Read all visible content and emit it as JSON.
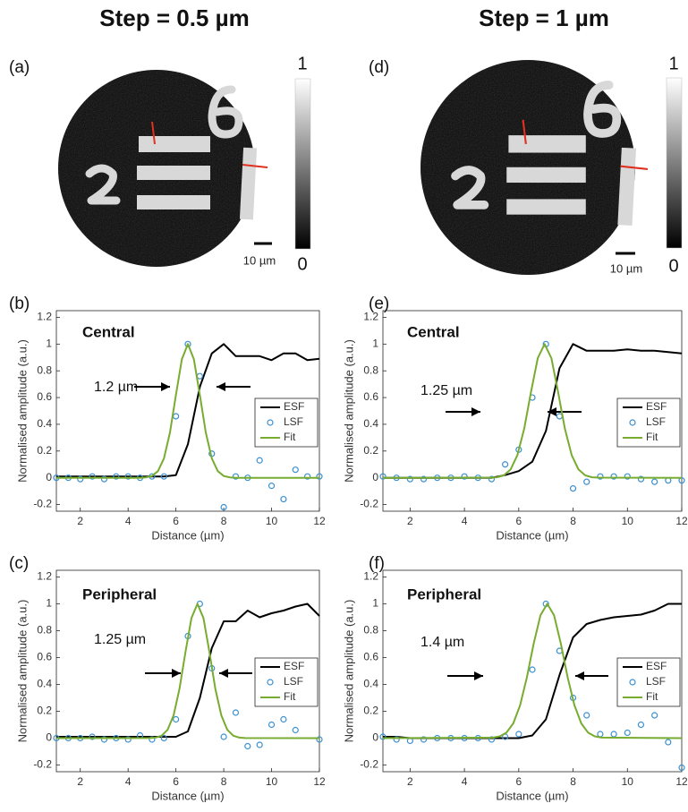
{
  "figure": {
    "columns": [
      {
        "heading": "Step = 0.5 µm",
        "image": {
          "panel_label": "(a)",
          "colorbar_max": "1",
          "colorbar_min": "0",
          "scale_bar": "10 µm"
        }
      },
      {
        "heading": "Step = 1 µm",
        "image": {
          "panel_label": "(d)",
          "colorbar_max": "1",
          "colorbar_min": "0",
          "scale_bar": "10 µm"
        }
      }
    ]
  },
  "chart_data": [
    {
      "type": "line",
      "panel_label": "(b)",
      "region": "Central",
      "fwhm_label": "1.2 µm",
      "x_label": "Distance (µm)",
      "y_label": "Normalised amplitude (a.u.)",
      "x": [
        1,
        1.5,
        2,
        2.5,
        3,
        3.5,
        4,
        4.5,
        5,
        5.5,
        6,
        6.5,
        7,
        7.5,
        8,
        8.5,
        9,
        9.5,
        10,
        10.5,
        11,
        11.5,
        12
      ],
      "series": [
        {
          "name": "ESF",
          "color": "#000000",
          "style": "line",
          "values": [
            0.01,
            0.01,
            0.01,
            0.01,
            0.01,
            0.01,
            0.01,
            0.01,
            0.01,
            0.01,
            0.02,
            0.25,
            0.68,
            0.93,
            1.0,
            0.91,
            0.91,
            0.91,
            0.88,
            0.93,
            0.93,
            0.88,
            0.89
          ]
        },
        {
          "name": "LSF",
          "color": "#3a8fd0",
          "style": "markers",
          "values": [
            0,
            0,
            -0.01,
            0.01,
            -0.01,
            0.01,
            0.01,
            0,
            0.01,
            0.01,
            0.46,
            1,
            0.76,
            0.18,
            -0.22,
            0.01,
            0,
            0.13,
            -0.06,
            -0.16,
            0.06,
            0.01,
            0.01
          ]
        },
        {
          "name": "Fit",
          "color": "#77ac30",
          "style": "line",
          "x": [
            1,
            4.5,
            4.75,
            5,
            5.25,
            5.5,
            5.75,
            6,
            6.25,
            6.5,
            6.75,
            7,
            7.25,
            7.5,
            7.75,
            8,
            8.25,
            8.5,
            12
          ],
          "values": [
            0,
            0,
            0.003,
            0.013,
            0.05,
            0.146,
            0.339,
            0.618,
            0.887,
            1,
            0.887,
            0.618,
            0.339,
            0.146,
            0.05,
            0.013,
            0.003,
            0,
            0
          ]
        }
      ],
      "xlim": [
        1,
        12
      ],
      "xticks": [
        2,
        4,
        6,
        8,
        10,
        12
      ],
      "ylim": [
        -0.25,
        1.25
      ],
      "yticks": [
        -0.2,
        0,
        0.2,
        0.4,
        0.6,
        0.8,
        1,
        1.2
      ],
      "legend": "right"
    },
    {
      "type": "line",
      "panel_label": "(c)",
      "region": "Peripheral",
      "fwhm_label": "1.25 µm",
      "x_label": "Distance (µm)",
      "y_label": "Normalised amplitude (a.u.)",
      "x": [
        1,
        1.5,
        2,
        2.5,
        3,
        3.5,
        4,
        4.5,
        5,
        5.5,
        6,
        6.5,
        7,
        7.5,
        8,
        8.5,
        9,
        9.5,
        10,
        10.5,
        11,
        11.5,
        12
      ],
      "series": [
        {
          "name": "ESF",
          "color": "#000000",
          "style": "line",
          "values": [
            0.01,
            0.01,
            0.01,
            0.01,
            0.01,
            0.01,
            0.01,
            0.01,
            0.01,
            0.01,
            0.01,
            0.05,
            0.3,
            0.67,
            0.87,
            0.87,
            0.95,
            0.9,
            0.93,
            0.95,
            0.98,
            1.0,
            0.91
          ]
        },
        {
          "name": "LSF",
          "color": "#3a8fd0",
          "style": "markers",
          "values": [
            0,
            0,
            0,
            0.01,
            -0.01,
            0,
            -0.01,
            0.02,
            -0.01,
            0,
            0.14,
            0.76,
            1,
            0.52,
            0.01,
            0.19,
            -0.06,
            -0.05,
            0.1,
            0.14,
            0.06,
            null,
            -0.01
          ]
        },
        {
          "name": "Fit",
          "color": "#77ac30",
          "style": "line",
          "x": [
            1,
            4.9,
            5.15,
            5.4,
            5.65,
            5.9,
            6.15,
            6.4,
            6.65,
            6.9,
            7.15,
            7.4,
            7.65,
            7.9,
            8.15,
            8.4,
            8.65,
            8.9,
            12
          ],
          "values": [
            0,
            0.001,
            0.004,
            0.018,
            0.062,
            0.169,
            0.367,
            0.641,
            0.895,
            1,
            0.895,
            0.641,
            0.367,
            0.169,
            0.062,
            0.018,
            0.004,
            0.001,
            0
          ]
        }
      ],
      "xlim": [
        1,
        12
      ],
      "xticks": [
        2,
        4,
        6,
        8,
        10,
        12
      ],
      "ylim": [
        -0.25,
        1.25
      ],
      "yticks": [
        -0.2,
        0,
        0.2,
        0.4,
        0.6,
        0.8,
        1,
        1.2
      ],
      "legend": "right"
    },
    {
      "type": "line",
      "panel_label": "(e)",
      "region": "Central",
      "fwhm_label": "1.25 µm",
      "x_label": "Distance (µm)",
      "y_label": "Normalised amplitude (a.u.)",
      "x": [
        1,
        1.5,
        2,
        2.5,
        3,
        3.5,
        4,
        4.5,
        5,
        5.5,
        6,
        6.5,
        7,
        7.5,
        8,
        8.5,
        9,
        9.5,
        10,
        10.5,
        11,
        11.5,
        12
      ],
      "series": [
        {
          "name": "ESF",
          "color": "#000000",
          "style": "line",
          "values": [
            0,
            0,
            0,
            0,
            0,
            0,
            0,
            0,
            0,
            0.02,
            0.05,
            0.12,
            0.35,
            0.82,
            1.0,
            0.95,
            0.95,
            0.95,
            0.96,
            0.95,
            0.95,
            0.94,
            0.93
          ]
        },
        {
          "name": "LSF",
          "color": "#3a8fd0",
          "style": "markers",
          "values": [
            0.01,
            0,
            -0.01,
            -0.01,
            0,
            0,
            0.01,
            0,
            -0.01,
            0.1,
            0.21,
            0.6,
            1,
            0.46,
            -0.08,
            -0.03,
            0.01,
            0.01,
            0.01,
            -0.01,
            -0.03,
            -0.02,
            -0.02
          ]
        },
        {
          "name": "Fit",
          "color": "#77ac30",
          "style": "line",
          "x": [
            1,
            4.95,
            5.2,
            5.45,
            5.7,
            5.95,
            6.2,
            6.45,
            6.7,
            6.95,
            7.2,
            7.45,
            7.7,
            7.95,
            8.2,
            8.45,
            8.7,
            8.95,
            12
          ],
          "values": [
            0,
            0.001,
            0.004,
            0.018,
            0.062,
            0.169,
            0.367,
            0.641,
            0.895,
            1,
            0.895,
            0.641,
            0.367,
            0.169,
            0.062,
            0.018,
            0.004,
            0.001,
            0
          ]
        }
      ],
      "xlim": [
        1,
        12
      ],
      "xticks": [
        2,
        4,
        6,
        8,
        10,
        12
      ],
      "ylim": [
        -0.25,
        1.25
      ],
      "yticks": [
        -0.2,
        0,
        0.2,
        0.4,
        0.6,
        0.8,
        1,
        1.2
      ],
      "legend": "right"
    },
    {
      "type": "line",
      "panel_label": "(f)",
      "region": "Peripheral",
      "fwhm_label": "1.4 µm",
      "x_label": "Distance (µm)",
      "y_label": "Normalised amplitude (a.u.)",
      "x": [
        1,
        1.5,
        2,
        2.5,
        3,
        3.5,
        4,
        4.5,
        5,
        5.5,
        6,
        6.5,
        7,
        7.5,
        8,
        8.5,
        9,
        9.5,
        10,
        10.5,
        11,
        11.5,
        12
      ],
      "series": [
        {
          "name": "ESF",
          "color": "#000000",
          "style": "line",
          "values": [
            0.01,
            0.01,
            0,
            0,
            0,
            0,
            0,
            0,
            0,
            0,
            0,
            0.02,
            0.14,
            0.47,
            0.75,
            0.85,
            0.88,
            0.9,
            0.91,
            0.92,
            0.95,
            1.0,
            1.0
          ]
        },
        {
          "name": "LSF",
          "color": "#3a8fd0",
          "style": "markers",
          "values": [
            0.01,
            -0.01,
            -0.02,
            -0.01,
            0,
            0,
            0,
            0,
            -0.01,
            0.01,
            0.03,
            0.51,
            1,
            0.65,
            0.3,
            0.17,
            0.03,
            0.03,
            0.04,
            0.1,
            0.17,
            -0.03,
            -0.22
          ]
        },
        {
          "name": "Fit",
          "color": "#77ac30",
          "style": "line",
          "x": [
            1,
            5.05,
            5.3,
            5.55,
            5.8,
            6.05,
            6.3,
            6.55,
            6.8,
            7.05,
            7.3,
            7.55,
            7.8,
            8.05,
            8.3,
            8.55,
            8.8,
            9.05,
            12
          ],
          "values": [
            0,
            0.004,
            0.013,
            0.042,
            0.11,
            0.244,
            0.452,
            0.703,
            0.915,
            1,
            0.915,
            0.703,
            0.452,
            0.244,
            0.11,
            0.042,
            0.013,
            0.004,
            0
          ]
        }
      ],
      "xlim": [
        1,
        12
      ],
      "xticks": [
        2,
        4,
        6,
        8,
        10,
        12
      ],
      "ylim": [
        -0.25,
        1.25
      ],
      "yticks": [
        -0.2,
        0,
        0.2,
        0.4,
        0.6,
        0.8,
        1,
        1.2
      ],
      "legend": "right"
    }
  ]
}
